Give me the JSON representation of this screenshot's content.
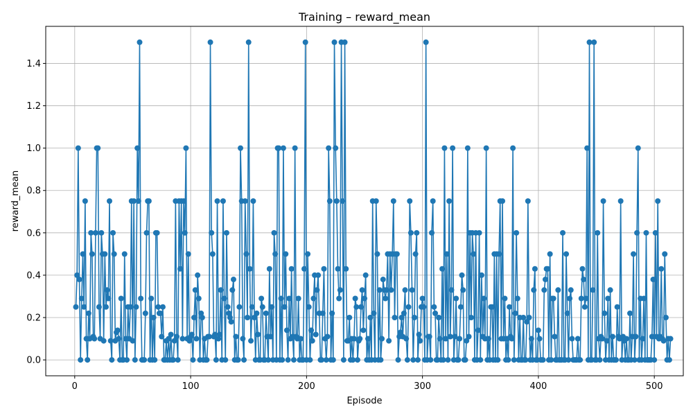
{
  "chart_data": {
    "type": "line",
    "title": "Training – reward_mean",
    "xlabel": "Episode",
    "ylabel": "reward_mean",
    "xlim": [
      -25,
      525
    ],
    "ylim": [
      -0.075,
      1.575
    ],
    "xticks": [
      0,
      100,
      200,
      300,
      400,
      500
    ],
    "xtick_labels": [
      "0",
      "100",
      "200",
      "300",
      "400",
      "500"
    ],
    "yticks": [
      0.0,
      0.2,
      0.4,
      0.6,
      0.8,
      1.0,
      1.2,
      1.4
    ],
    "ytick_labels": [
      "0.0",
      "0.2",
      "0.4",
      "0.6",
      "0.8",
      "1.0",
      "1.2",
      "1.4"
    ],
    "grid": true,
    "line_color": "#1f77b4",
    "marker": "circle",
    "series": [
      {
        "x_start": 1,
        "x_step": 1,
        "values": [
          0.25,
          0.4,
          1.0,
          0.38,
          0.0,
          0.29,
          0.5,
          0.25,
          0.75,
          0.1,
          0.0,
          0.22,
          0.1,
          0.6,
          0.5,
          0.11,
          0.1,
          0.6,
          1.0,
          1.0,
          0.25,
          0.1,
          0.6,
          0.5,
          0.09,
          0.5,
          0.25,
          0.33,
          0.29,
          0.75,
          0.09,
          0.0,
          0.6,
          0.5,
          0.09,
          0.13,
          0.14,
          0.1,
          0.0,
          0.29,
          0.0,
          0.0,
          0.5,
          0.1,
          0.0,
          0.25,
          0.1,
          0.25,
          0.75,
          0.09,
          0.75,
          0.0,
          0.25,
          1.0,
          0.75,
          1.5,
          0.29,
          0.0,
          0.0,
          0.0,
          0.22,
          0.6,
          0.75,
          0.75,
          0.0,
          0.29,
          0.0,
          0.2,
          0.0,
          0.6,
          0.6,
          0.25,
          0.22,
          0.22,
          0.11,
          0.25,
          0.0,
          0.0,
          0.09,
          0.0,
          0.1,
          0.0,
          0.12,
          0.0,
          0.0,
          0.09,
          0.75,
          0.11,
          0.0,
          0.75,
          0.43,
          0.75,
          0.1,
          0.75,
          0.6,
          1.0,
          0.1,
          0.5,
          0.09,
          0.11,
          0.12,
          0.0,
          0.2,
          0.33,
          0.1,
          0.4,
          0.29,
          0.0,
          0.22,
          0.2,
          0.0,
          0.1,
          0.0,
          0.0,
          0.11,
          0.11,
          1.5,
          0.6,
          0.5,
          0.11,
          0.12,
          0.0,
          0.75,
          0.1,
          0.12,
          0.33,
          0.0,
          0.75,
          0.29,
          0.0,
          0.6,
          0.25,
          0.22,
          0.2,
          0.18,
          0.33,
          0.38,
          0.0,
          0.11,
          0.0,
          0.0,
          0.25,
          1.0,
          0.75,
          0.1,
          0.0,
          0.75,
          0.5,
          0.2,
          1.5,
          0.43,
          0.09,
          0.25,
          0.75,
          0.2,
          0.0,
          0.22,
          0.12,
          0.0,
          0.0,
          0.29,
          0.25,
          0.0,
          0.0,
          0.22,
          0.11,
          0.0,
          0.43,
          0.11,
          0.25,
          0.0,
          0.6,
          0.5,
          0.0,
          1.0,
          1.0,
          0.0,
          0.29,
          0.0,
          1.0,
          0.25,
          0.5,
          0.14,
          0.0,
          0.29,
          0.1,
          0.43,
          0.11,
          0.0,
          1.0,
          0.11,
          0.1,
          0.29,
          0.0,
          0.1,
          0.0,
          0.0,
          0.43,
          1.5,
          0.0,
          0.5,
          0.25,
          0.0,
          0.14,
          0.09,
          0.29,
          0.4,
          0.12,
          0.33,
          0.4,
          0.22,
          0.0,
          0.0,
          0.22,
          0.43,
          0.1,
          0.0,
          0.11,
          1.0,
          0.75,
          0.0,
          0.22,
          0.0,
          1.5,
          1.0,
          0.75,
          0.43,
          0.29,
          0.33,
          1.5,
          0.75,
          0.0,
          1.5,
          0.43,
          0.09,
          0.09,
          0.2,
          0.0,
          0.1,
          0.0,
          0.1,
          0.29,
          0.25,
          0.0,
          0.09,
          0.1,
          0.25,
          0.33,
          0.14,
          0.29,
          0.4,
          0.0,
          0.1,
          0.0,
          0.2,
          0.0,
          0.75,
          0.22,
          0.0,
          0.75,
          0.5,
          0.0,
          0.33,
          0.0,
          0.1,
          0.38,
          0.33,
          0.29,
          0.33,
          0.5,
          0.09,
          0.5,
          0.33,
          0.5,
          0.75,
          0.2,
          0.5,
          0.5,
          0.0,
          0.11,
          0.13,
          0.2,
          0.11,
          0.22,
          0.33,
          0.1,
          0.0,
          0.25,
          0.75,
          0.6,
          0.33,
          0.0,
          0.2,
          0.5,
          0.6,
          0.0,
          0.12,
          0.09,
          0.25,
          0.29,
          0.25,
          0.0,
          1.5,
          0.0,
          0.11,
          0.11,
          0.0,
          0.6,
          0.75,
          0.25,
          0.22,
          0.0,
          0.0,
          0.2,
          0.1,
          0.0,
          0.43,
          0.0,
          1.0,
          0.1,
          0.5,
          0.0,
          0.75,
          0.11,
          0.33,
          1.0,
          0.0,
          0.11,
          0.29,
          0.0,
          0.0,
          0.1,
          0.25,
          0.4,
          0.33,
          0.0,
          0.0,
          0.09,
          1.0,
          0.11,
          0.6,
          0.2,
          0.6,
          0.5,
          0.0,
          0.6,
          0.0,
          0.14,
          0.6,
          0.0,
          0.4,
          0.11,
          0.29,
          0.1,
          1.0,
          0.0,
          0.1,
          0.0,
          0.25,
          0.25,
          0.0,
          0.5,
          0.0,
          0.5,
          0.0,
          0.5,
          0.75,
          0.1,
          0.75,
          0.1,
          0.29,
          0.0,
          0.1,
          0.0,
          0.25,
          0.11,
          0.1,
          1.0,
          0.0,
          0.22,
          0.6,
          0.29,
          0.0,
          0.2,
          0.0,
          0.0,
          0.2,
          0.0,
          0.0,
          0.18,
          0.75,
          0.2,
          0.0,
          0.1,
          0.0,
          0.33,
          0.43,
          0.0,
          0.0,
          0.14,
          0.1,
          0.0,
          0.0,
          0.0,
          0.33,
          0.38,
          0.43,
          0.43,
          0.0,
          0.5,
          0.0,
          0.29,
          0.29,
          0.11,
          0.0,
          0.0,
          0.33,
          0.0,
          0.0,
          0.0,
          0.6,
          0.0,
          0.0,
          0.5,
          0.22,
          0.0,
          0.29,
          0.33,
          0.1,
          0.0,
          0.0,
          0.0,
          0.0,
          0.1,
          0.0,
          0.0,
          0.29,
          0.43,
          0.38,
          0.25,
          0.29,
          1.0,
          0.0,
          1.5,
          0.0,
          0.0,
          0.33,
          1.5,
          0.0,
          0.0,
          0.6,
          0.1,
          0.0,
          0.11,
          0.1,
          0.75,
          0.22,
          0.0,
          0.09,
          0.29,
          0.0,
          0.33,
          0.0,
          0.11,
          0.0,
          0.0,
          0.0,
          0.25,
          0.11,
          0.1,
          0.75,
          0.0,
          0.11,
          0.09,
          0.0,
          0.1,
          0.0,
          0.0,
          0.22,
          0.0,
          0.11,
          0.5,
          0.0,
          0.11,
          0.6,
          1.0,
          0.0,
          0.29,
          0.0,
          0.1,
          0.29,
          0.0,
          0.6,
          0.0,
          0.0,
          0.0,
          0.0,
          0.11,
          0.38,
          0.0,
          0.6,
          0.11,
          0.75,
          0.1,
          0.11,
          0.43,
          0.1,
          0.09,
          0.5,
          0.2,
          0.0,
          0.1,
          0.0,
          0.1
        ]
      }
    ]
  }
}
